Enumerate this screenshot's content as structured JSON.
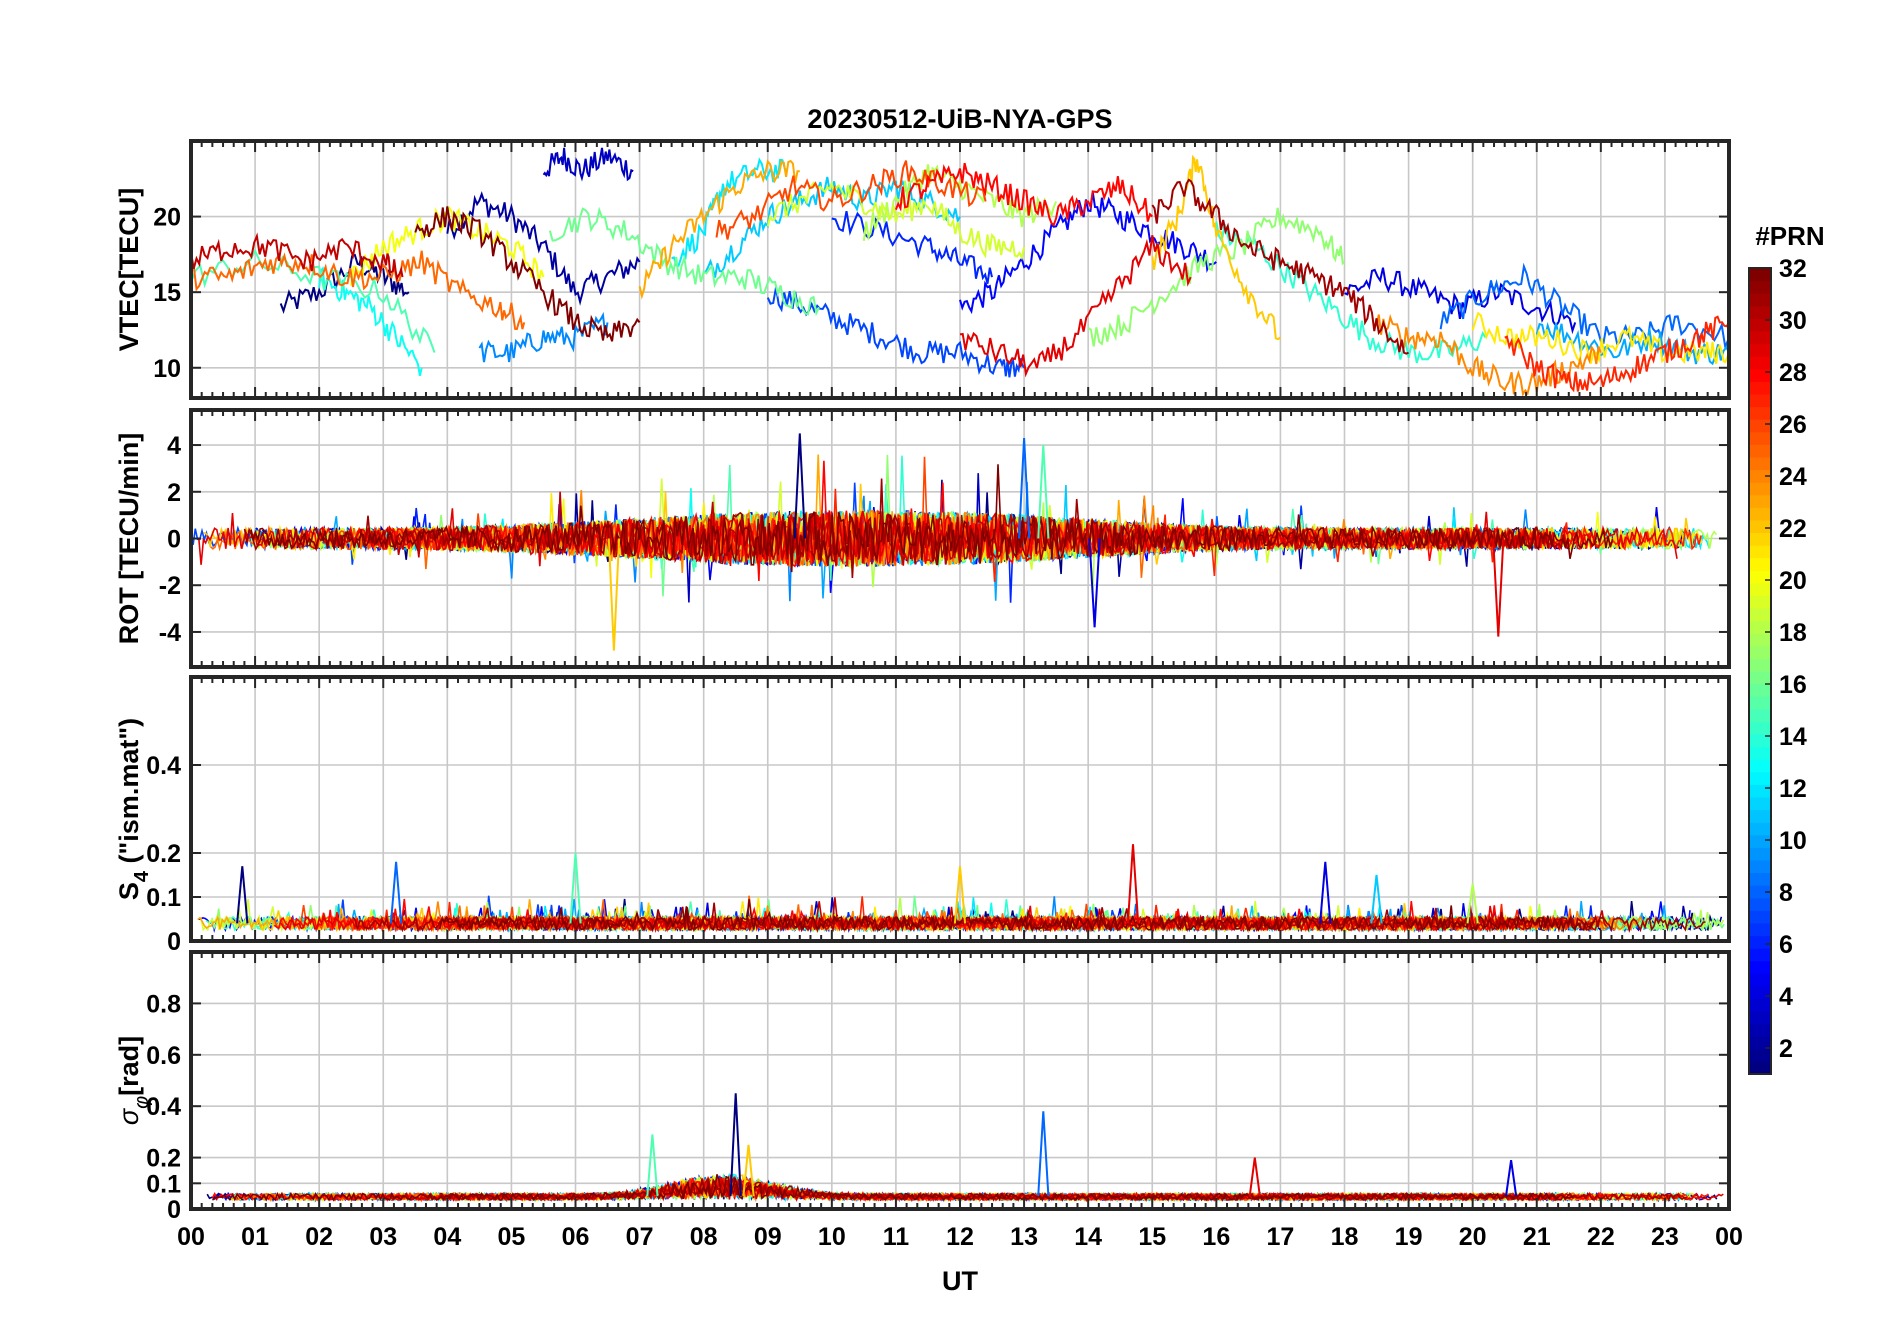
{
  "chart_data": {
    "type": "line",
    "title": "20230512-UiB-NYA-GPS",
    "xlabel": "UT",
    "x_ticks": [
      "00",
      "01",
      "02",
      "03",
      "04",
      "05",
      "06",
      "07",
      "08",
      "09",
      "10",
      "11",
      "12",
      "13",
      "14",
      "15",
      "16",
      "17",
      "18",
      "19",
      "20",
      "21",
      "22",
      "23",
      "00"
    ],
    "xlim": [
      0,
      24
    ],
    "grid": true,
    "colorbar": {
      "label": "#PRN",
      "range": [
        1,
        32
      ],
      "ticks": [
        "2",
        "4",
        "6",
        "8",
        "10",
        "12",
        "14",
        "16",
        "18",
        "20",
        "22",
        "24",
        "26",
        "28",
        "30",
        "32"
      ],
      "colormap": "jet"
    },
    "panels": [
      {
        "id": "vtec",
        "ylabel": "VTEC[TECU]",
        "ylim": [
          8,
          25
        ],
        "yticks": [
          10,
          15,
          20
        ],
        "ytick_labels": [
          "10",
          "15",
          "20"
        ],
        "series": [
          {
            "prn": 1,
            "x": [
              1.4,
              2.0,
              2.6,
              3.0,
              3.4
            ],
            "y": [
              14,
              15,
              17,
              16,
              15
            ]
          },
          {
            "prn": 2,
            "x": [
              4.0,
              4.5,
              5.0,
              5.5,
              6.0,
              6.5,
              7.0
            ],
            "y": [
              19,
              21,
              20,
              18,
              15,
              16,
              17
            ]
          },
          {
            "prn": 3,
            "x": [
              5.5,
              5.8,
              6.1,
              6.5,
              6.9
            ],
            "y": [
              23,
              24,
              23,
              24,
              23
            ]
          },
          {
            "prn": 4,
            "x": [
              18.0,
              18.6,
              19.2,
              19.8,
              20.4,
              21.0,
              21.6
            ],
            "y": [
              15,
              16,
              15,
              14,
              15,
              14,
              13
            ]
          },
          {
            "prn": 5,
            "x": [
              12.0,
              12.5,
              13.0,
              13.5,
              14.0,
              14.5,
              15.0,
              15.5,
              16.0
            ],
            "y": [
              14,
              15,
              17,
              19,
              21,
              20,
              19,
              18,
              17
            ]
          },
          {
            "prn": 6,
            "x": [
              10.0,
              10.8,
              11.5,
              12.0,
              12.5
            ],
            "y": [
              20,
              19,
              18,
              17,
              16
            ]
          },
          {
            "prn": 7,
            "x": [
              9.0,
              9.6,
              10.2,
              10.8,
              11.4,
              12.0,
              12.6,
              13.0
            ],
            "y": [
              15,
              14,
              13,
              12,
              11,
              11,
              10,
              10
            ]
          },
          {
            "prn": 8,
            "x": [
              19.5,
              20.2,
              20.8,
              21.4,
              22.0,
              22.6,
              23.2,
              24.0
            ],
            "y": [
              13,
              15,
              16,
              14,
              12,
              12,
              13,
              12
            ]
          },
          {
            "prn": 9,
            "x": [
              4.5,
              5.0,
              5.5,
              6.0,
              6.5
            ],
            "y": [
              11,
              11,
              12,
              12,
              13
            ]
          },
          {
            "prn": 10,
            "x": [
              21.0,
              21.6,
              22.2,
              22.8,
              23.4,
              24.0
            ],
            "y": [
              13,
              12,
              11,
              12,
              11,
              11
            ]
          },
          {
            "prn": 11,
            "x": [
              8.0,
              8.5,
              9.0,
              9.5,
              10.0,
              10.5,
              11.0,
              11.5,
              12.0
            ],
            "y": [
              16,
              18,
              20,
              21,
              22,
              21,
              22,
              21,
              20
            ]
          },
          {
            "prn": 12,
            "x": [
              7.5,
              8.0,
              8.3,
              8.8,
              9.3
            ],
            "y": [
              17,
              19,
              22,
              23,
              23
            ]
          },
          {
            "prn": 13,
            "x": [
              2.0,
              2.4,
              2.8,
              3.2,
              3.6
            ],
            "y": [
              16,
              15,
              14,
              12,
              10
            ]
          },
          {
            "prn": 14,
            "x": [
              16.0,
              16.6,
              17.2,
              17.8,
              18.4,
              19.0,
              19.6,
              20.2
            ],
            "y": [
              19,
              18,
              16,
              14,
              12,
              11,
              11,
              12
            ]
          },
          {
            "prn": 15,
            "x": [
              0.0,
              1.0,
              2.0,
              3.0,
              3.8
            ],
            "y": [
              16,
              17,
              16,
              15,
              11
            ]
          },
          {
            "prn": 16,
            "x": [
              5.6,
              6.2,
              6.8,
              7.4,
              8.0,
              8.6,
              9.2,
              9.8
            ],
            "y": [
              19,
              20,
              19,
              17,
              16,
              16,
              15,
              14
            ]
          },
          {
            "prn": 17,
            "x": [
              14.0,
              14.6,
              15.2,
              15.8,
              16.4,
              17.0,
              17.6,
              18.0
            ],
            "y": [
              12,
              13,
              15,
              17,
              18,
              20,
              19,
              17
            ]
          },
          {
            "prn": 18,
            "x": [
              10.5,
              11.0,
              11.5,
              12.0,
              12.5,
              13.0,
              13.5
            ],
            "y": [
              19,
              21,
              23,
              22,
              21,
              20,
              21
            ]
          },
          {
            "prn": 19,
            "x": [
              9.0,
              9.5,
              10.0,
              10.5,
              11.0,
              11.5,
              12.0,
              12.5,
              13.0
            ],
            "y": [
              20,
              21,
              22,
              21,
              20,
              21,
              19,
              18,
              18
            ]
          },
          {
            "prn": 20,
            "x": [
              2.5,
              3.0,
              3.5,
              4.0,
              4.5,
              5.0,
              5.5
            ],
            "y": [
              16,
              18,
              19,
              20,
              19,
              18,
              16
            ]
          },
          {
            "prn": 21,
            "x": [
              20.0,
              20.6,
              21.2,
              21.8,
              22.4,
              23.0,
              23.6,
              24.0
            ],
            "y": [
              13,
              12,
              12,
              11,
              12,
              11,
              11,
              11
            ]
          },
          {
            "prn": 22,
            "x": [
              15.0,
              15.4,
              15.7,
              16.0,
              16.5,
              17.0
            ],
            "y": [
              17,
              20,
              24,
              19,
              15,
              12
            ]
          },
          {
            "prn": 23,
            "x": [
              7.0,
              7.5,
              8.0,
              8.5,
              9.0,
              9.5
            ],
            "y": [
              15,
              18,
              20,
              22,
              23,
              23
            ]
          },
          {
            "prn": 24,
            "x": [
              18.5,
              19.0,
              19.5,
              20.0,
              20.5,
              21.0,
              21.5,
              22.0
            ],
            "y": [
              13,
              12,
              12,
              10,
              9,
              9,
              10,
              11
            ]
          },
          {
            "prn": 25,
            "x": [
              0.0,
              0.6,
              1.2,
              1.8,
              2.4,
              3.0,
              3.6,
              4.2,
              4.8,
              5.2
            ],
            "y": [
              16,
              16,
              17,
              17,
              16,
              16,
              17,
              15,
              14,
              13
            ]
          },
          {
            "prn": 26,
            "x": [
              8.2,
              8.8,
              9.4,
              10.0,
              10.6,
              11.2,
              11.8,
              12.4
            ],
            "y": [
              19,
              20,
              22,
              21,
              22,
              23,
              22,
              21
            ]
          },
          {
            "prn": 27,
            "x": [
              20.5,
              21.0,
              21.5,
              22.0,
              22.5,
              23.0,
              23.5,
              24.0
            ],
            "y": [
              12,
              10,
              9,
              9,
              10,
              11,
              12,
              13
            ]
          },
          {
            "prn": 28,
            "x": [
              11.0,
              11.5,
              12.0,
              12.5,
              13.0,
              13.5,
              14.0,
              14.5,
              15.0
            ],
            "y": [
              21,
              22,
              23,
              22,
              21,
              20,
              21,
              22,
              20
            ]
          },
          {
            "prn": 29,
            "x": [
              12.0,
              12.6,
              13.2,
              13.8,
              14.4,
              15.0,
              15.6
            ],
            "y": [
              12,
              11,
              10,
              12,
              15,
              18,
              16
            ]
          },
          {
            "prn": 30,
            "x": [
              0.0,
              0.6,
              1.2,
              1.8,
              2.4,
              3.0,
              3.3
            ],
            "y": [
              17,
              18,
              18,
              17,
              18,
              17,
              16
            ]
          },
          {
            "prn": 31,
            "x": [
              15.0,
              15.5,
              16.0,
              16.5,
              17.0,
              17.5,
              18.0,
              18.5,
              19.0
            ],
            "y": [
              20,
              22,
              20,
              18,
              17,
              16,
              15,
              13,
              11
            ]
          },
          {
            "prn": 32,
            "x": [
              3.5,
              4.0,
              4.5,
              5.0,
              5.5,
              6.0,
              6.5,
              7.0
            ],
            "y": [
              19,
              20,
              19,
              17,
              15,
              13,
              12,
              13
            ]
          }
        ]
      },
      {
        "id": "rot",
        "ylabel": "ROT [TECU/min]",
        "ylim": [
          -5.5,
          5.5
        ],
        "yticks": [
          -4,
          -2,
          0,
          2,
          4
        ],
        "ytick_labels": [
          "-4",
          "-2",
          "0",
          "2",
          "4"
        ],
        "series_summary": "high-cadence ROT values oscillating around 0 (mostly within ±1 TECU/min) for all PRNs, with spikes up to about 4.5 near 09:30, 13:00 and down to about -4.8 near 06:40",
        "peaks": [
          {
            "x": 9.5,
            "y": 4.5
          },
          {
            "x": 13.0,
            "y": 4.3
          },
          {
            "x": 13.3,
            "y": 4.0
          },
          {
            "x": 6.6,
            "y": -4.8
          },
          {
            "x": 20.4,
            "y": -4.2
          },
          {
            "x": 14.1,
            "y": -3.8
          }
        ]
      },
      {
        "id": "s4",
        "ylabel": "S4 (\"ism.mat\")",
        "ylabel_main": "S",
        "ylabel_sub": "4",
        "ylabel_tail": "  (\"ism.mat\")",
        "ylim": [
          0,
          0.6
        ],
        "yticks": [
          0,
          0.1,
          0.2,
          0.4
        ],
        "ytick_labels": [
          "0",
          "0.1",
          "0.2",
          "0.4"
        ],
        "series_summary": "S4 mostly between 0.02 and 0.08 with bursts up to ~0.2",
        "peaks": [
          {
            "x": 0.8,
            "y": 0.17
          },
          {
            "x": 3.2,
            "y": 0.18
          },
          {
            "x": 6.0,
            "y": 0.2
          },
          {
            "x": 12.0,
            "y": 0.17
          },
          {
            "x": 14.7,
            "y": 0.22
          },
          {
            "x": 17.7,
            "y": 0.18
          },
          {
            "x": 18.5,
            "y": 0.15
          },
          {
            "x": 20.0,
            "y": 0.13
          }
        ]
      },
      {
        "id": "sigma",
        "ylabel": "σφ[rad]",
        "ylabel_main": "σ",
        "ylabel_sub": "φ",
        "ylabel_tail": "[rad]",
        "ylim": [
          0,
          1.0
        ],
        "yticks": [
          0,
          0.1,
          0.2,
          0.4,
          0.6,
          0.8
        ],
        "ytick_labels": [
          "0",
          "0.1",
          "0.2",
          "0.4",
          "0.6",
          "0.8"
        ],
        "series_summary": "phase scintillation index mostly ~0.03-0.08 with enhancement to ~0.2-0.3 between 07 and 10 UT",
        "peaks": [
          {
            "x": 8.5,
            "y": 0.45
          },
          {
            "x": 13.3,
            "y": 0.38
          },
          {
            "x": 7.2,
            "y": 0.29
          },
          {
            "x": 8.7,
            "y": 0.25
          },
          {
            "x": 16.6,
            "y": 0.2
          },
          {
            "x": 20.6,
            "y": 0.19
          }
        ]
      }
    ]
  }
}
